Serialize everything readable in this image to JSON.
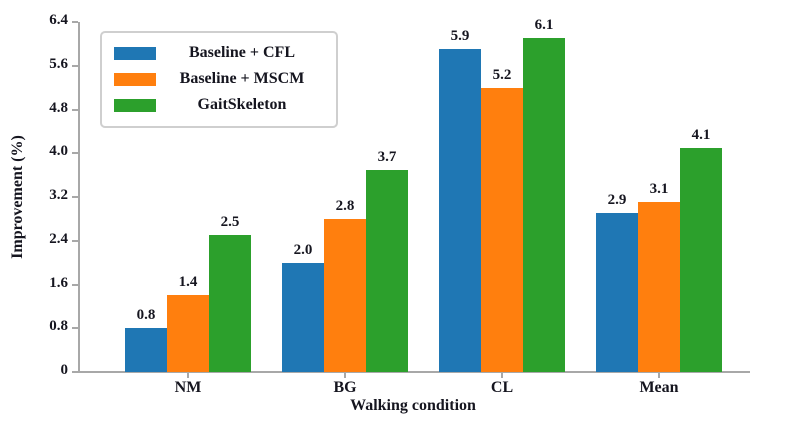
{
  "chart_data": {
    "type": "bar",
    "title": "",
    "xlabel": "Walking condition",
    "ylabel": "Improvement (%)",
    "categories": [
      "NM",
      "BG",
      "CL",
      "Mean"
    ],
    "series": [
      {
        "name": "Baseline + CFL",
        "color": "#1f77b4",
        "values": [
          0.8,
          2.0,
          5.9,
          2.9
        ]
      },
      {
        "name": "Baseline + MSCM",
        "color": "#ff7f0e",
        "values": [
          1.4,
          2.8,
          5.2,
          3.1
        ]
      },
      {
        "name": "GaitSkeleton",
        "color": "#2ca02c",
        "values": [
          2.5,
          3.7,
          6.1,
          4.1
        ]
      }
    ],
    "bar_value_labels": [
      [
        "0.8",
        "2.0",
        "5.9",
        "2.9"
      ],
      [
        "1.4",
        "2.8",
        "5.2",
        "3.1"
      ],
      [
        "2.5",
        "3.7",
        "6.1",
        "4.1"
      ]
    ],
    "ylim": [
      0,
      6.4
    ],
    "ytick_labels": [
      "0",
      "0.8",
      "1.6",
      "2.4",
      "3.2",
      "4.0",
      "4.8",
      "5.6",
      "6.4"
    ],
    "yticks": [
      0,
      0.8,
      1.6,
      2.4,
      3.2,
      4.0,
      4.8,
      5.6,
      6.4
    ],
    "grid": false,
    "legend_position": "upper left",
    "spine_color": "#a8a8a8"
  }
}
